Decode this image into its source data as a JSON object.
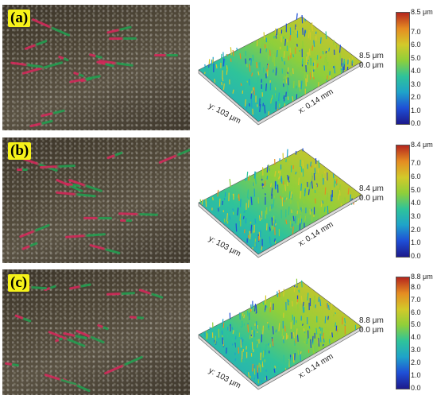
{
  "panels": [
    {
      "label": "(a)",
      "x_axis": "x: 0.14 mm",
      "y_axis": "y: 103 μm",
      "z_scale_top": "8.5 μm",
      "z_scale_bottom": "0.0 μm",
      "colorbar_ticks": [
        "8.5 μm",
        "7.0",
        "6.0",
        "5.0",
        "4.0",
        "3.0",
        "2.0",
        "1.0",
        "0.0"
      ],
      "colorbar_values": [
        8.5,
        7.0,
        6.0,
        5.0,
        4.0,
        3.0,
        2.0,
        1.0,
        0.0
      ],
      "colorbar_max": 8.5
    },
    {
      "label": "(b)",
      "x_axis": "x: 0.14 mm",
      "y_axis": "y: 103 μm",
      "z_scale_top": "8.4 μm",
      "z_scale_bottom": "0.0 μm",
      "colorbar_ticks": [
        "8.4 μm",
        "7.0",
        "6.0",
        "5.0",
        "4.0",
        "3.0",
        "2.0",
        "1.0",
        "0.0"
      ],
      "colorbar_values": [
        8.4,
        7.0,
        6.0,
        5.0,
        4.0,
        3.0,
        2.0,
        1.0,
        0.0
      ],
      "colorbar_max": 8.4
    },
    {
      "label": "(c)",
      "x_axis": "x: 0.14 mm",
      "y_axis": "y: 103 μm",
      "z_scale_top": "8.8 μm",
      "z_scale_bottom": "0.0 μm",
      "colorbar_ticks": [
        "8.8 μm",
        "8.0",
        "7.0",
        "6.0",
        "5.0",
        "4.0",
        "3.0",
        "2.0",
        "1.0",
        "0.0"
      ],
      "colorbar_values": [
        8.8,
        8.0,
        7.0,
        6.0,
        5.0,
        4.0,
        3.0,
        2.0,
        1.0,
        0.0
      ],
      "colorbar_max": 8.8
    }
  ],
  "colors": {
    "label_bg": "#f6f21a",
    "colormap": [
      "#1d1a8c",
      "#1f4fd6",
      "#1fa3c9",
      "#2fc39a",
      "#8fcf3a",
      "#d3c92a",
      "#e58c22",
      "#b5261e"
    ]
  }
}
